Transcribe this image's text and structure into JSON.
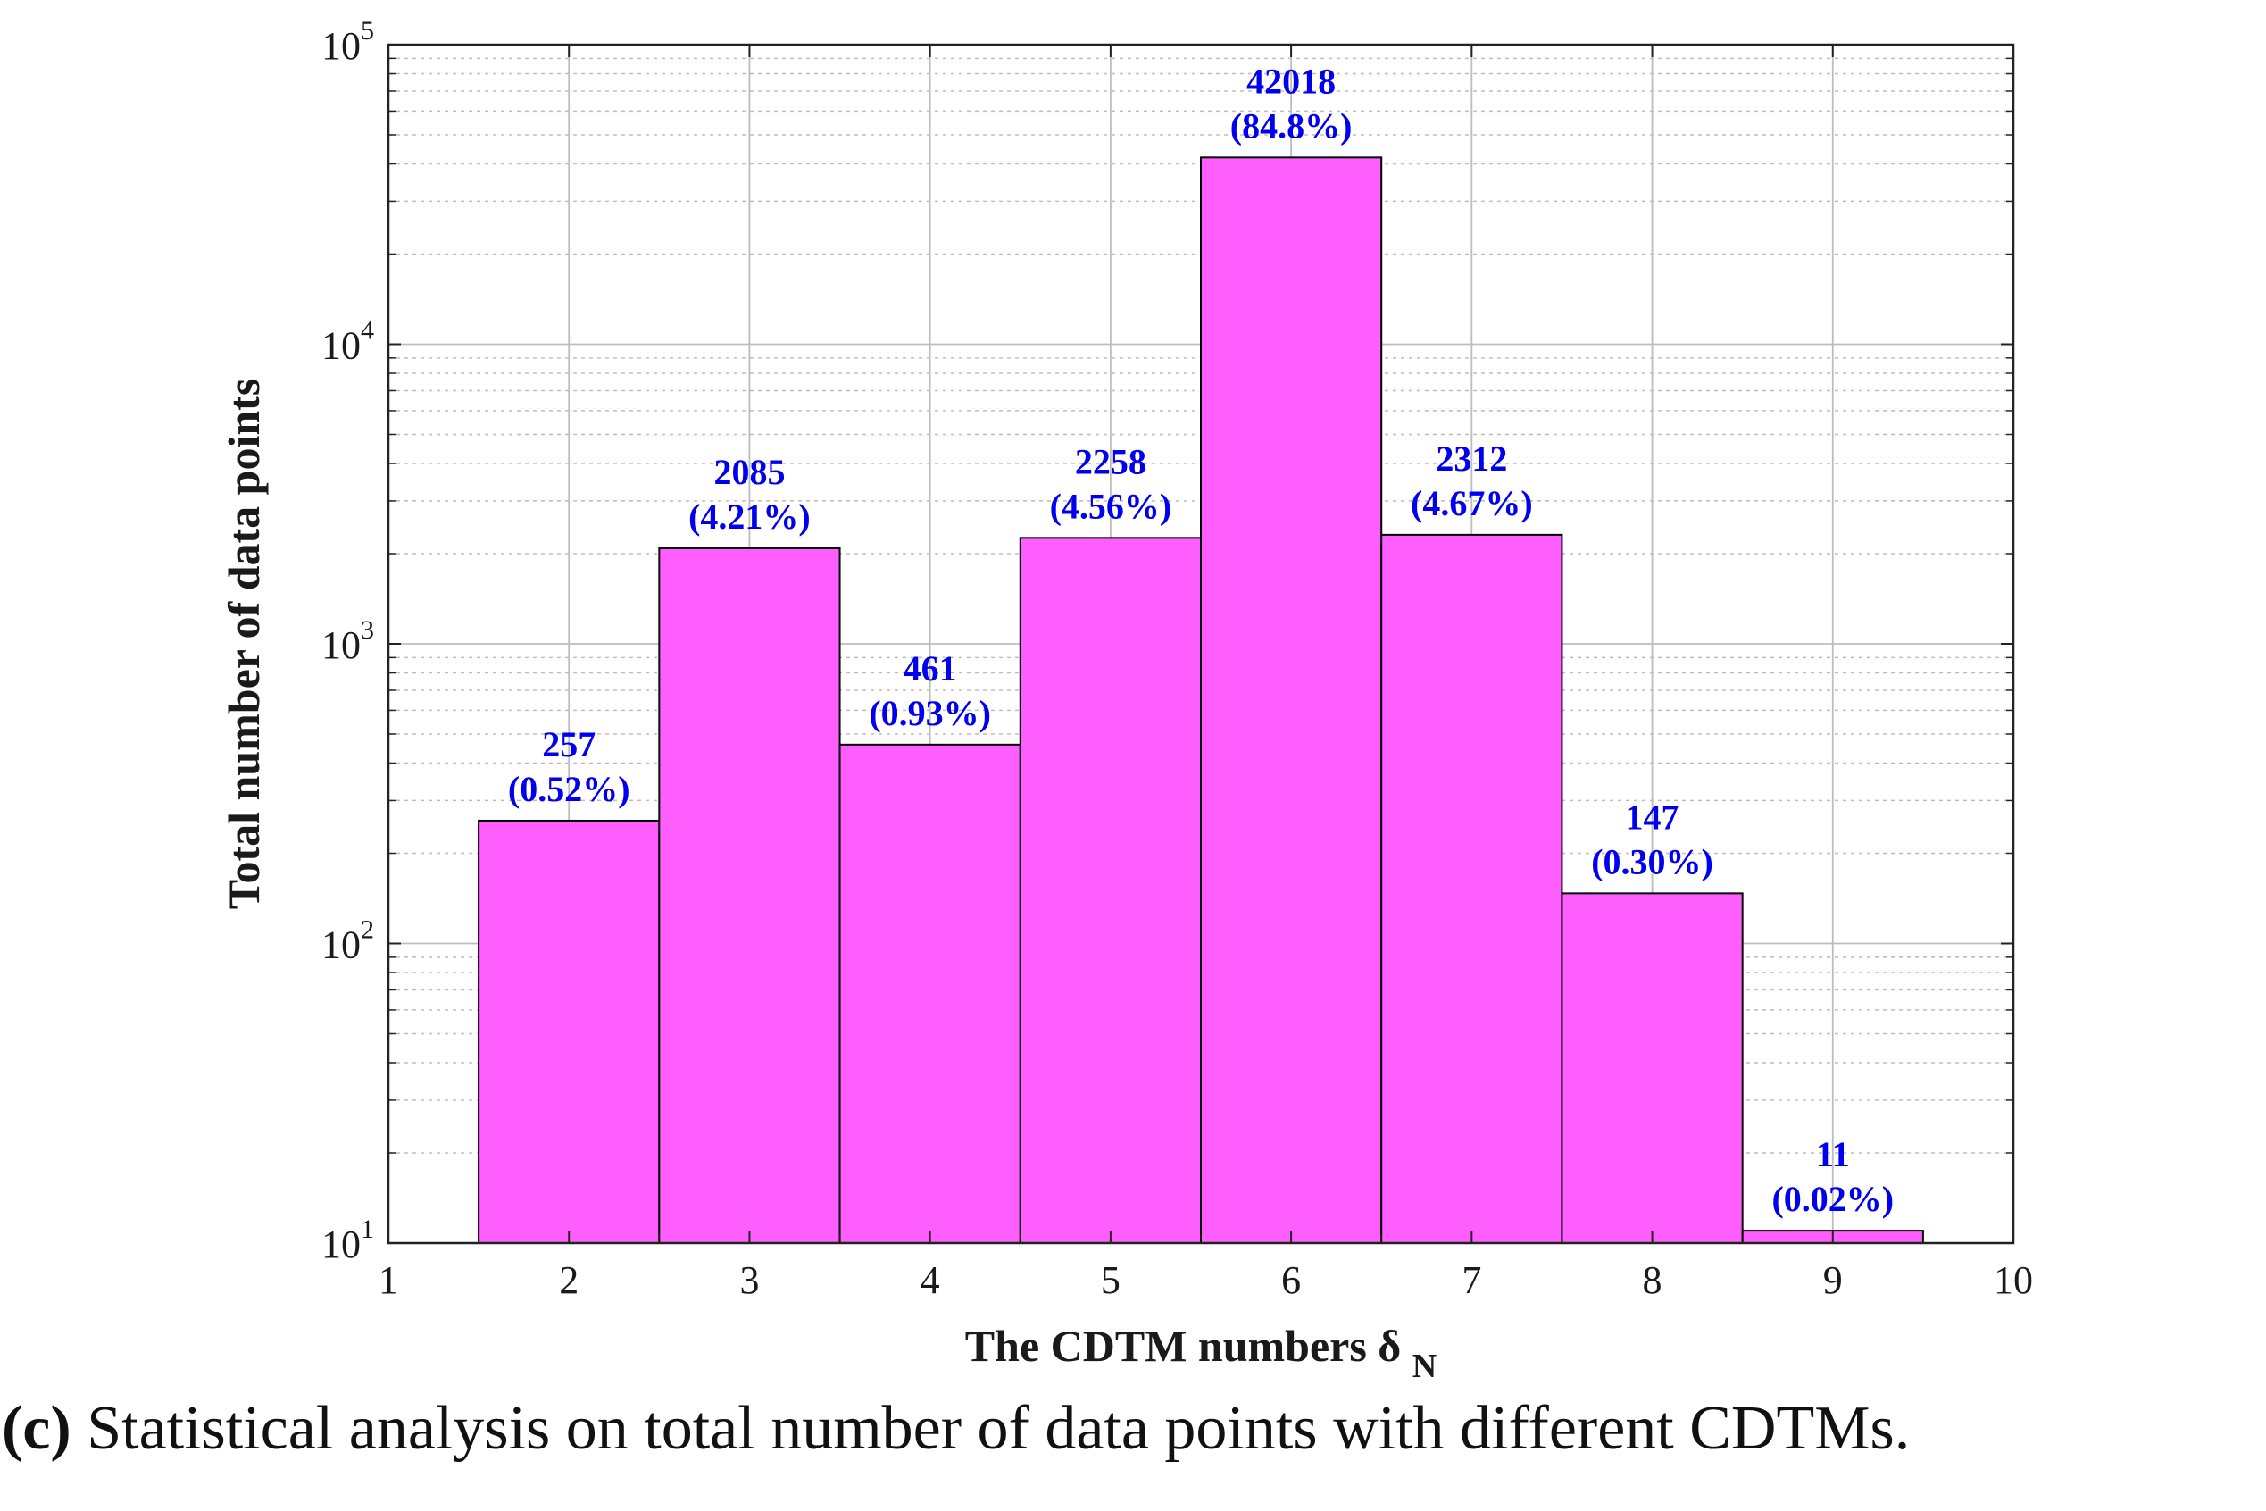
{
  "chart_data": {
    "type": "bar",
    "x": [
      2,
      3,
      4,
      5,
      6,
      7,
      8,
      9
    ],
    "values": [
      257,
      2085,
      461,
      2258,
      42018,
      2312,
      147,
      11
    ],
    "bar_labels": [
      "257",
      "2085",
      "461",
      "2258",
      "42018",
      "2312",
      "147",
      "11"
    ],
    "percent_labels": [
      "(0.52%)",
      "(4.21%)",
      "(0.93%)",
      "(4.56%)",
      "(84.8%)",
      "(4.67%)",
      "(0.30%)",
      "(0.02%)"
    ],
    "xlabel": "The CDTM numbers δ",
    "xlabel_subscript": "N",
    "ylabel": "Total number of data points",
    "xlim": [
      1,
      10
    ],
    "xticks": [
      1,
      2,
      3,
      4,
      5,
      6,
      7,
      8,
      9,
      10
    ],
    "yscale": "log",
    "ylim": [
      10,
      100000
    ],
    "yticks": [
      {
        "base": "10",
        "exp": "1",
        "value": 10
      },
      {
        "base": "10",
        "exp": "2",
        "value": 100
      },
      {
        "base": "10",
        "exp": "3",
        "value": 1000
      },
      {
        "base": "10",
        "exp": "4",
        "value": 10000
      },
      {
        "base": "10",
        "exp": "5",
        "value": 100000
      }
    ],
    "grid": true,
    "colors": {
      "bar": "#ff5eff",
      "bar_edge": "#000000",
      "label": "#0000ee",
      "grid": "#bdbdbd"
    }
  },
  "caption": {
    "tag": "(c)",
    "text": "Statistical analysis on total number of data points with different CDTMs."
  }
}
